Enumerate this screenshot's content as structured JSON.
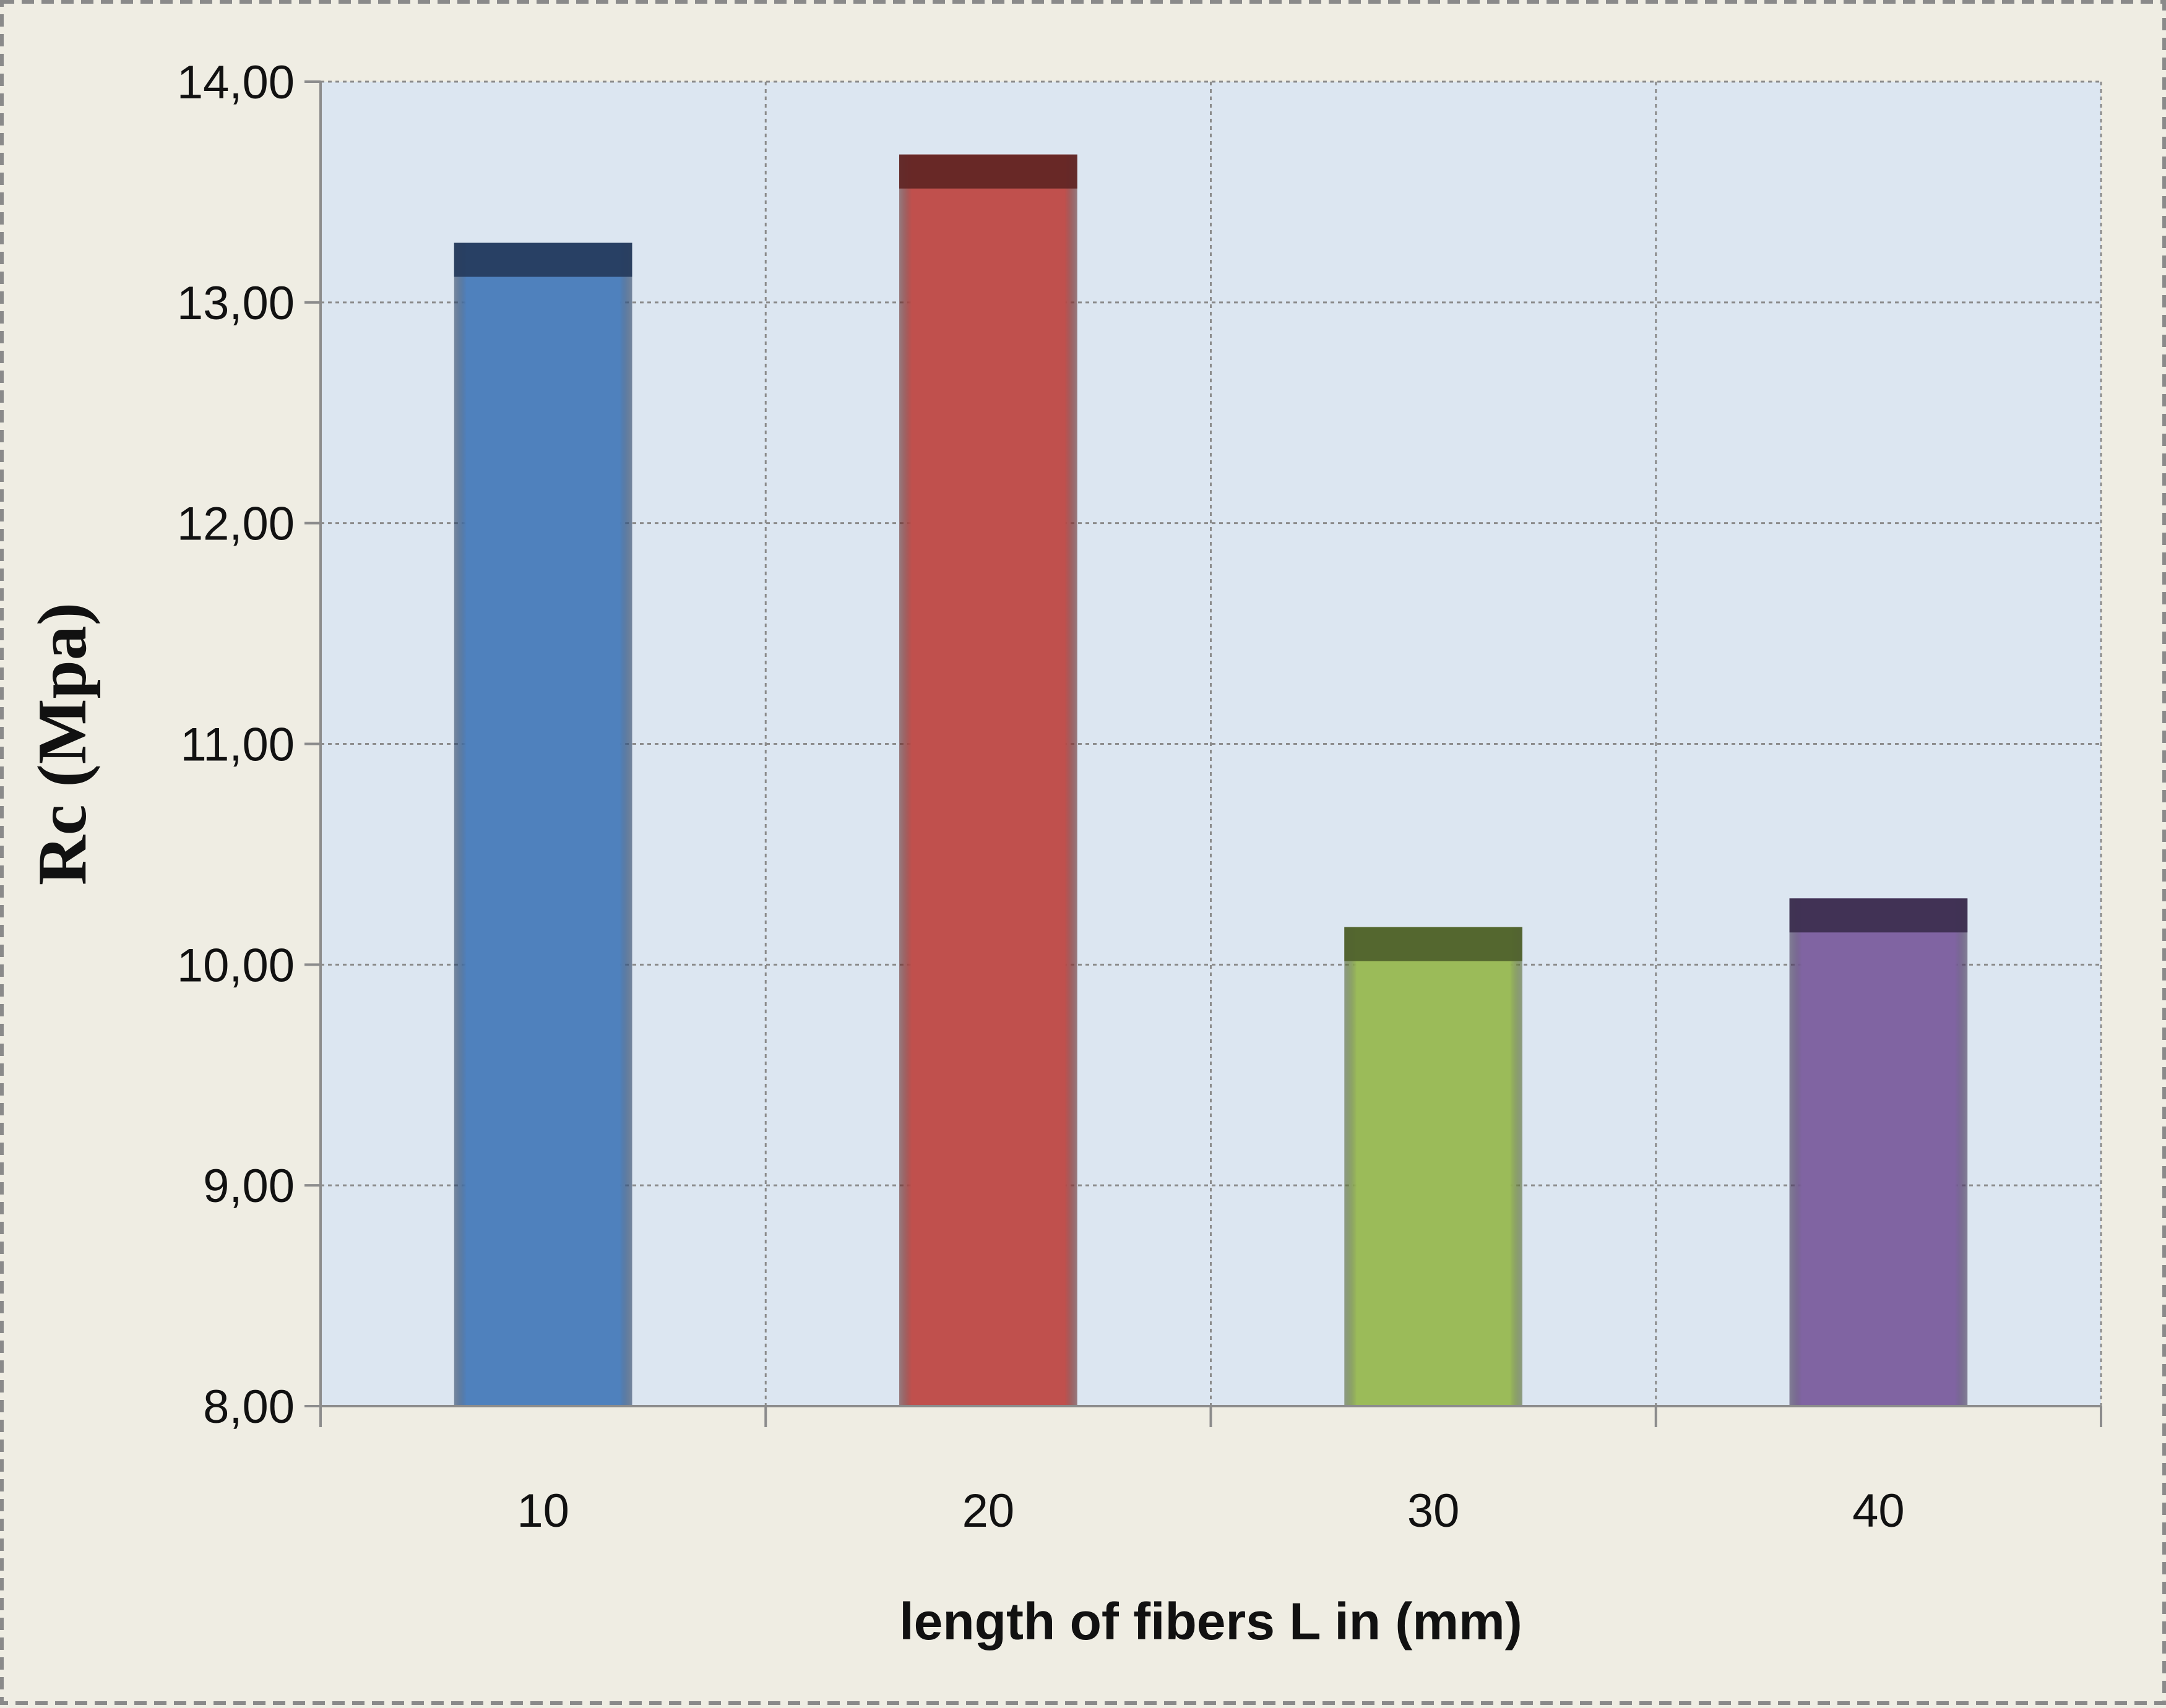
{
  "chart_data": {
    "type": "bar",
    "categories": [
      "10",
      "20",
      "30",
      "40"
    ],
    "values": [
      13.27,
      13.67,
      10.17,
      10.3
    ],
    "xlabel": "length of fibers L in (mm)",
    "ylabel": "Rc (Mpa)",
    "ylim": [
      8,
      14
    ],
    "yticks": [
      "8,00",
      "9,00",
      "10,00",
      "11,00",
      "12,00",
      "13,00",
      "14,00"
    ],
    "grid": true,
    "legend": "none",
    "bar_colors": [
      "#4f81bd",
      "#c0504d",
      "#9bbb59",
      "#8064a2"
    ],
    "bar_cap_colors": [
      "#23395a",
      "#5e2322",
      "#4d5e2a",
      "#3a2c4d"
    ],
    "plot_background": "#dce6f1",
    "page_background": "#efede3"
  }
}
